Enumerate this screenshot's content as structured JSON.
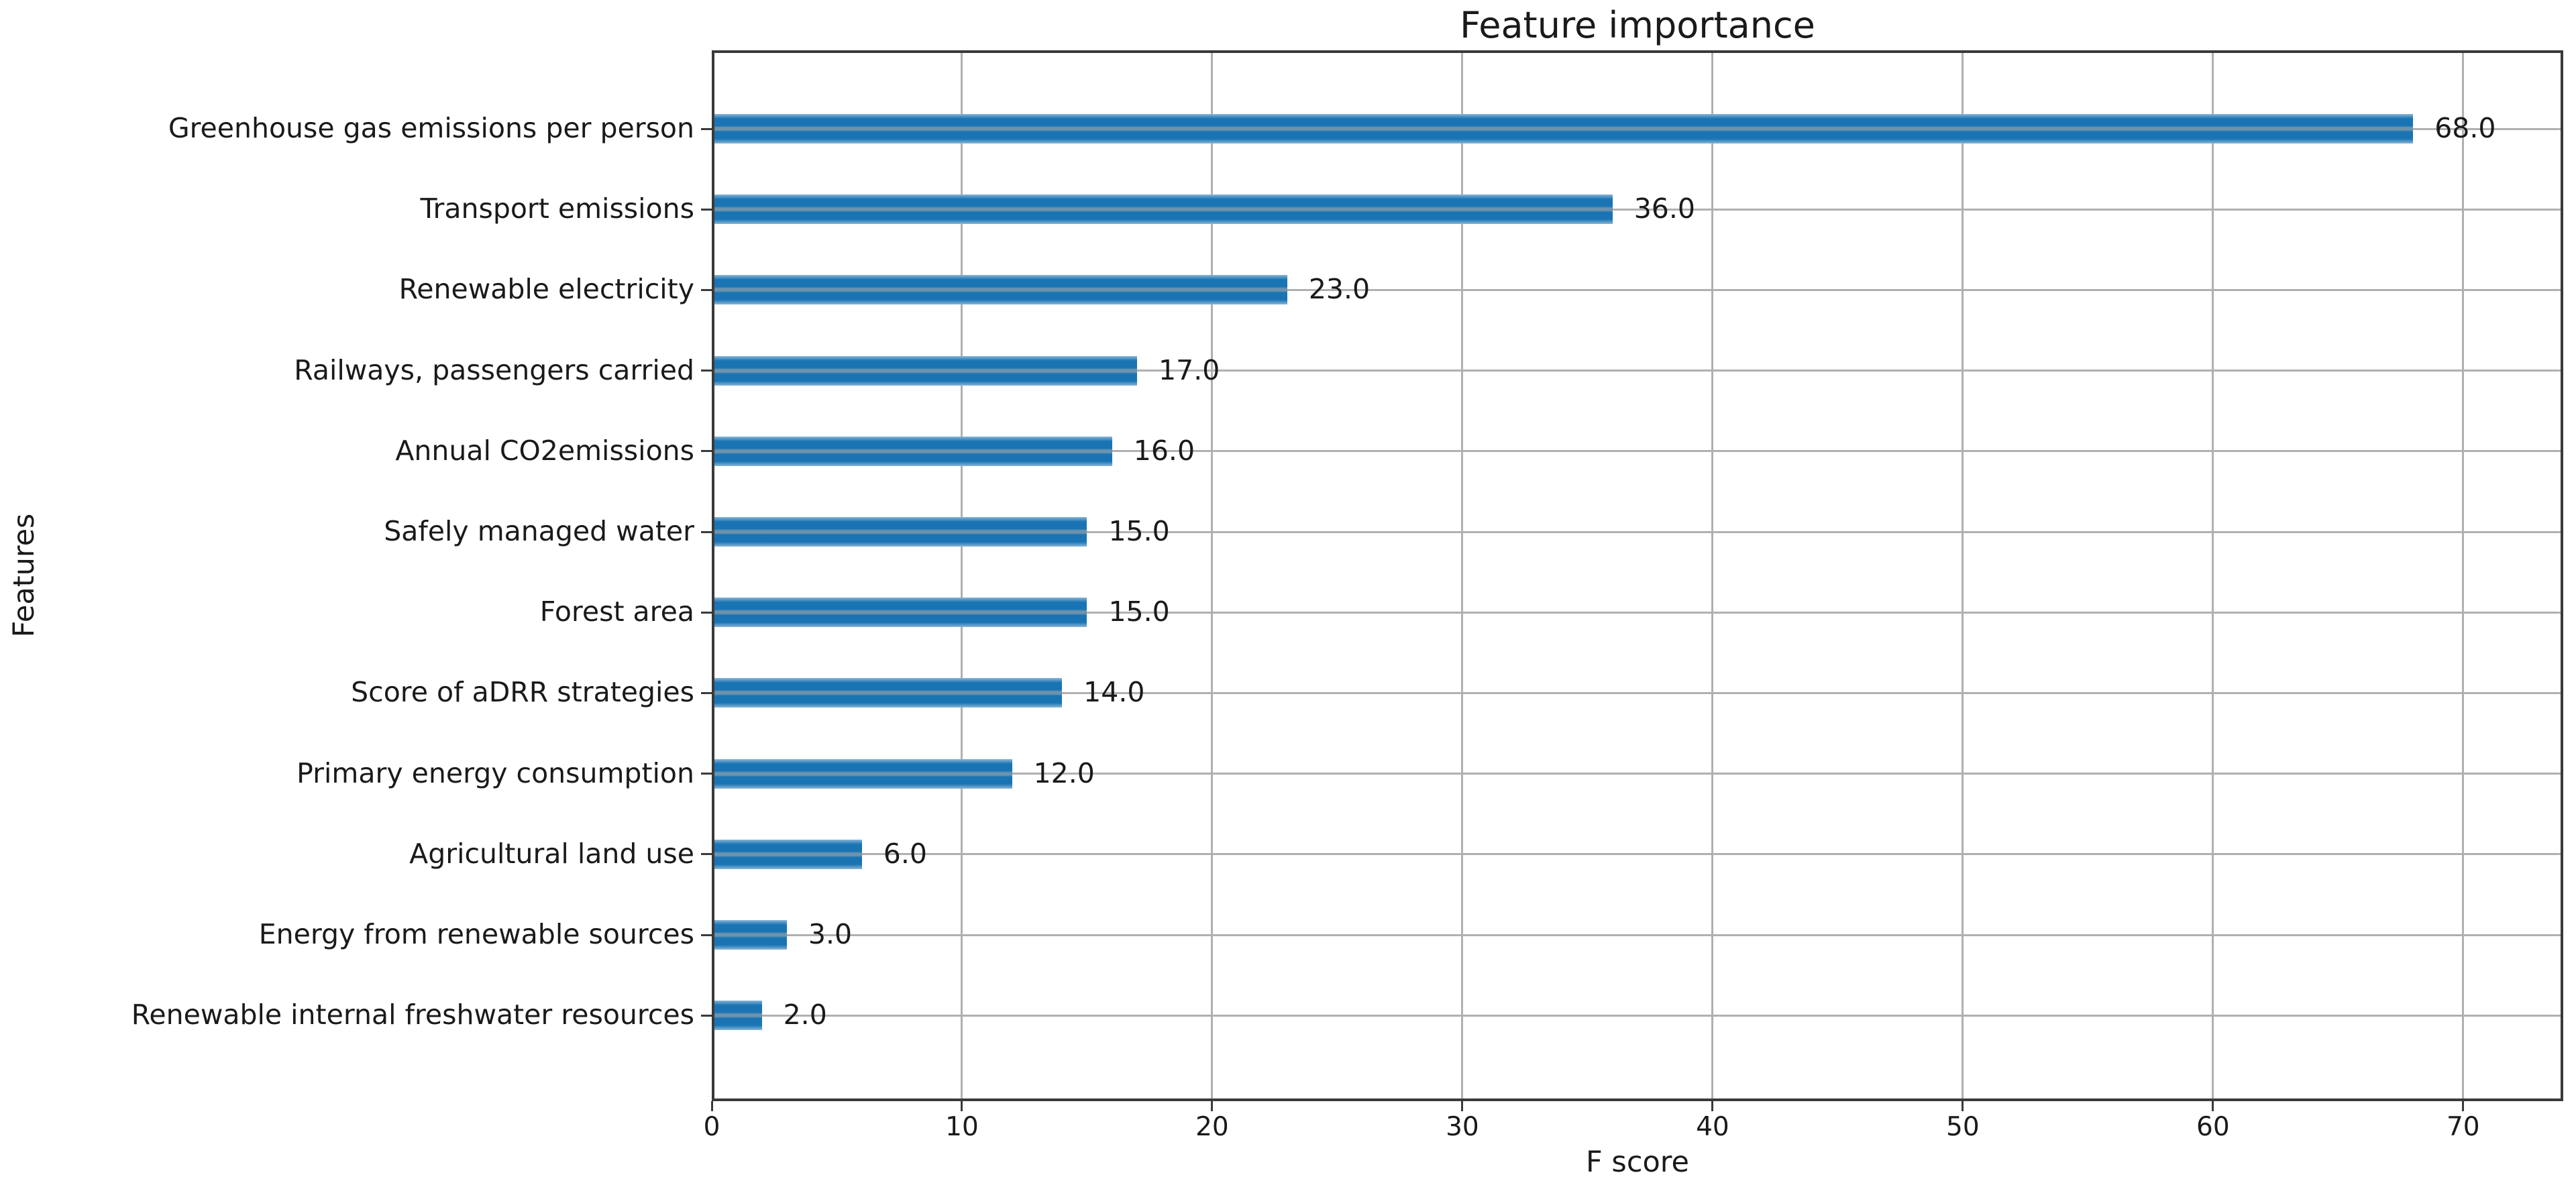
{
  "chart_data": {
    "type": "bar",
    "orientation": "horizontal",
    "title": "Feature importance",
    "xlabel": "F score",
    "ylabel": "Features",
    "categories": [
      "Greenhouse gas emissions per person",
      "Transport emissions",
      "Renewable electricity",
      "Railways, passengers carried",
      "Annual CO2emissions",
      "Safely managed water",
      "Forest area",
      "Score of aDRR strategies",
      "Primary energy consumption",
      "Agricultural land use",
      "Energy from renewable sources",
      "Renewable internal freshwater resources"
    ],
    "series": [
      {
        "name": "F score",
        "values": [
          68,
          36,
          23,
          17,
          16,
          15,
          15,
          14,
          12,
          6,
          3,
          2
        ]
      }
    ],
    "value_labels": [
      "68.0",
      "36.0",
      "23.0",
      "17.0",
      "16.0",
      "15.0",
      "15.0",
      "14.0",
      "12.0",
      "6.0",
      "3.0",
      "2.0"
    ],
    "xticks": [
      "0",
      "10",
      "20",
      "30",
      "40",
      "50",
      "60",
      "70"
    ],
    "xtick_values": [
      0,
      10,
      20,
      30,
      40,
      50,
      60,
      70
    ],
    "xlim": [
      0,
      74
    ],
    "grid": true,
    "legend": null,
    "bar_color": "#1a74b4",
    "grid_color": "#b0b0b0",
    "spine_color": "#3a3a3a",
    "text_color": "#1a1a1a",
    "background_color": "#ffffff"
  }
}
